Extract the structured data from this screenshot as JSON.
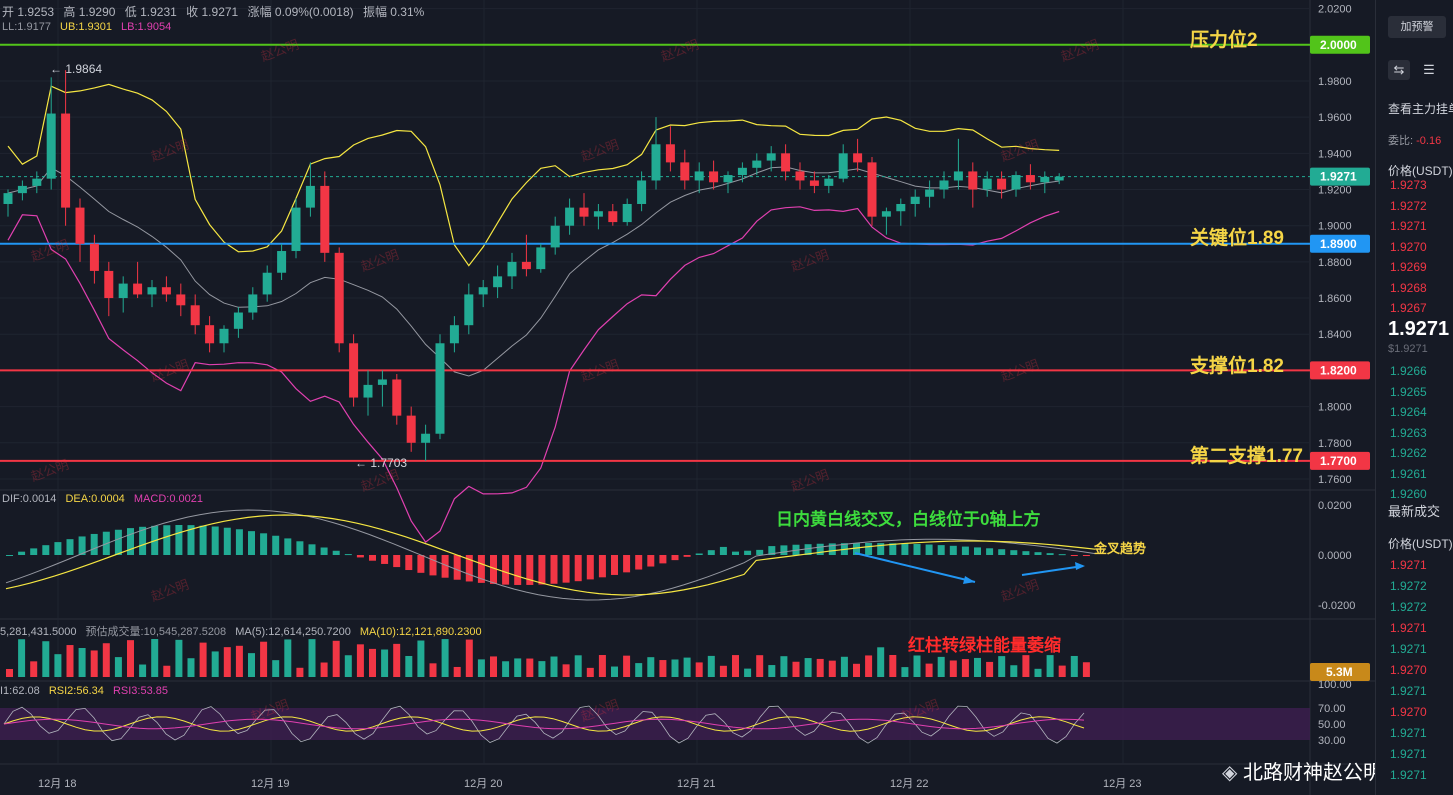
{
  "header": {
    "ohlc": [
      "开 1.9253",
      "高 1.9290",
      "低 1.9231",
      "收 1.9271",
      "涨幅 0.09%(0.0018)",
      "振幅 0.31%"
    ],
    "boll": [
      "LL:1.9177",
      "UB:1.9301",
      "LB:1.9054"
    ]
  },
  "price_axis": {
    "ticks": [
      "2.0200",
      "1.9800",
      "1.9600",
      "1.9400",
      "1.9200",
      "1.9000",
      "1.8800",
      "1.8600",
      "1.8400",
      "1.8200",
      "1.8000",
      "1.7800",
      "1.7600"
    ],
    "current_price": "1.9271"
  },
  "levels": [
    {
      "label": "压力位2",
      "price_tag": "2.0000",
      "color": "#52c41a",
      "value": 2.0
    },
    {
      "label": "关键位1.89",
      "price_tag": "1.8900",
      "color": "#2196f3",
      "value": 1.89
    },
    {
      "label": "支撑位1.82",
      "price_tag": "1.8200",
      "color": "#f23645",
      "value": 1.82
    },
    {
      "label": "第二支撑1.77",
      "price_tag": "1.7700",
      "color": "#f23645",
      "value": 1.77
    }
  ],
  "extremes": {
    "high": "← 1.9864",
    "low": "← 1.7703"
  },
  "macd": {
    "labels": [
      "DIF:0.0014",
      "DEA:0.0004",
      "MACD:0.0021"
    ],
    "ticks": [
      "0.0200",
      "0.0000",
      "-0.0200"
    ],
    "annotation_main": "日内黄白线交叉，白线位于0轴上方",
    "annotation_cross": "金叉趋势"
  },
  "volume": {
    "labels": [
      "5,281,431.5000",
      "预估成交量:10,545,287.5208",
      "MA(5):12,614,250.7200",
      "MA(10):12,121,890.2300"
    ],
    "tag": "5.3M",
    "annotation": "红柱转绿柱能量萎缩"
  },
  "rsi": {
    "labels": [
      "I1:62.08",
      "RSI2:56.34",
      "RSI3:53.85"
    ],
    "ticks": [
      "100.00",
      "70.00",
      "50.00",
      "30.00"
    ]
  },
  "time_axis": [
    "12月 18",
    "12月 19",
    "12月 20",
    "12月 21",
    "12月 22",
    "12月 23"
  ],
  "watermark": "赵公明",
  "brand": "北路财神赵公明",
  "right_panel": {
    "add_alert": "加预警",
    "view_orders": "查看主力挂单",
    "entrust_ratio_label": "委比:",
    "entrust_ratio_value": "-0.16",
    "price_header": "价格(USDT)",
    "asks": [
      "1.9273",
      "1.9272",
      "1.9271",
      "1.9270",
      "1.9269",
      "1.9268",
      "1.9267"
    ],
    "last_price": "1.9271",
    "last_price_usd": "$1.9271",
    "bids": [
      "1.9266",
      "1.9265",
      "1.9264",
      "1.9263",
      "1.9262",
      "1.9261",
      "1.9260"
    ],
    "trades_title": "最新成交",
    "trades_price_header": "价格(USDT)",
    "trades": [
      {
        "p": "1.9271",
        "c": "red"
      },
      {
        "p": "1.9272",
        "c": "green"
      },
      {
        "p": "1.9272",
        "c": "green"
      },
      {
        "p": "1.9271",
        "c": "red"
      },
      {
        "p": "1.9271",
        "c": "green"
      },
      {
        "p": "1.9270",
        "c": "red"
      },
      {
        "p": "1.9271",
        "c": "green"
      },
      {
        "p": "1.9270",
        "c": "red"
      },
      {
        "p": "1.9271",
        "c": "green"
      },
      {
        "p": "1.9271",
        "c": "green"
      },
      {
        "p": "1.9271",
        "c": "green"
      }
    ]
  },
  "colors": {
    "up": "#22ab94",
    "down": "#f23645",
    "bg": "#161a25",
    "grid": "#1f2430"
  },
  "chart_data": {
    "type": "candlestick",
    "date_range": [
      "12月 18",
      "12月 23"
    ],
    "ylim": [
      1.755,
      2.022
    ],
    "candles": [
      [
        1.912,
        1.92,
        1.905,
        1.918
      ],
      [
        1.918,
        1.925,
        1.914,
        1.922
      ],
      [
        1.922,
        1.93,
        1.918,
        1.926
      ],
      [
        1.926,
        1.982,
        1.92,
        1.962
      ],
      [
        1.962,
        1.986,
        1.9,
        1.91
      ],
      [
        1.91,
        1.915,
        1.88,
        1.89
      ],
      [
        1.89,
        1.895,
        1.868,
        1.875
      ],
      [
        1.875,
        1.88,
        1.85,
        1.86
      ],
      [
        1.86,
        1.872,
        1.852,
        1.868
      ],
      [
        1.868,
        1.88,
        1.86,
        1.862
      ],
      [
        1.862,
        1.87,
        1.855,
        1.866
      ],
      [
        1.866,
        1.872,
        1.858,
        1.862
      ],
      [
        1.862,
        1.868,
        1.85,
        1.856
      ],
      [
        1.856,
        1.862,
        1.84,
        1.845
      ],
      [
        1.845,
        1.85,
        1.83,
        1.835
      ],
      [
        1.835,
        1.845,
        1.83,
        1.843
      ],
      [
        1.843,
        1.855,
        1.838,
        1.852
      ],
      [
        1.852,
        1.866,
        1.848,
        1.862
      ],
      [
        1.862,
        1.878,
        1.858,
        1.874
      ],
      [
        1.874,
        1.89,
        1.87,
        1.886
      ],
      [
        1.886,
        1.915,
        1.882,
        1.91
      ],
      [
        1.91,
        1.935,
        1.905,
        1.922
      ],
      [
        1.922,
        1.93,
        1.88,
        1.885
      ],
      [
        1.885,
        1.888,
        1.83,
        1.835
      ],
      [
        1.835,
        1.84,
        1.8,
        1.805
      ],
      [
        1.805,
        1.82,
        1.795,
        1.812
      ],
      [
        1.812,
        1.82,
        1.8,
        1.815
      ],
      [
        1.815,
        1.818,
        1.79,
        1.795
      ],
      [
        1.795,
        1.8,
        1.775,
        1.78
      ],
      [
        1.78,
        1.79,
        1.77,
        1.785
      ],
      [
        1.785,
        1.84,
        1.782,
        1.835
      ],
      [
        1.835,
        1.85,
        1.83,
        1.845
      ],
      [
        1.845,
        1.868,
        1.84,
        1.862
      ],
      [
        1.862,
        1.87,
        1.855,
        1.866
      ],
      [
        1.866,
        1.878,
        1.86,
        1.872
      ],
      [
        1.872,
        1.885,
        1.865,
        1.88
      ],
      [
        1.88,
        1.895,
        1.872,
        1.876
      ],
      [
        1.876,
        1.89,
        1.874,
        1.888
      ],
      [
        1.888,
        1.905,
        1.884,
        1.9
      ],
      [
        1.9,
        1.915,
        1.895,
        1.91
      ],
      [
        1.91,
        1.918,
        1.9,
        1.905
      ],
      [
        1.905,
        1.912,
        1.898,
        1.908
      ],
      [
        1.908,
        1.912,
        1.9,
        1.902
      ],
      [
        1.902,
        1.915,
        1.9,
        1.912
      ],
      [
        1.912,
        1.93,
        1.908,
        1.925
      ],
      [
        1.925,
        1.96,
        1.92,
        1.945
      ],
      [
        1.945,
        1.955,
        1.93,
        1.935
      ],
      [
        1.935,
        1.942,
        1.92,
        1.925
      ],
      [
        1.925,
        1.935,
        1.918,
        1.93
      ],
      [
        1.93,
        1.936,
        1.92,
        1.924
      ],
      [
        1.924,
        1.93,
        1.918,
        1.928
      ],
      [
        1.928,
        1.935,
        1.924,
        1.932
      ],
      [
        1.932,
        1.94,
        1.928,
        1.936
      ],
      [
        1.936,
        1.944,
        1.93,
        1.94
      ],
      [
        1.94,
        1.945,
        1.925,
        1.93
      ],
      [
        1.93,
        1.935,
        1.92,
        1.925
      ],
      [
        1.925,
        1.93,
        1.918,
        1.922
      ],
      [
        1.922,
        1.928,
        1.918,
        1.926
      ],
      [
        1.926,
        1.945,
        1.924,
        1.94
      ],
      [
        1.94,
        1.948,
        1.93,
        1.935
      ],
      [
        1.935,
        1.938,
        1.9,
        1.905
      ],
      [
        1.905,
        1.91,
        1.895,
        1.908
      ],
      [
        1.908,
        1.915,
        1.9,
        1.912
      ],
      [
        1.912,
        1.92,
        1.905,
        1.916
      ],
      [
        1.916,
        1.925,
        1.91,
        1.92
      ],
      [
        1.92,
        1.93,
        1.915,
        1.925
      ],
      [
        1.925,
        1.948,
        1.92,
        1.93
      ],
      [
        1.93,
        1.935,
        1.91,
        1.92
      ],
      [
        1.92,
        1.93,
        1.916,
        1.926
      ],
      [
        1.926,
        1.93,
        1.915,
        1.92
      ],
      [
        1.92,
        1.93,
        1.916,
        1.928
      ],
      [
        1.928,
        1.934,
        1.92,
        1.924
      ],
      [
        1.924,
        1.93,
        1.918,
        1.927
      ],
      [
        1.925,
        1.929,
        1.923,
        1.9271
      ]
    ]
  }
}
